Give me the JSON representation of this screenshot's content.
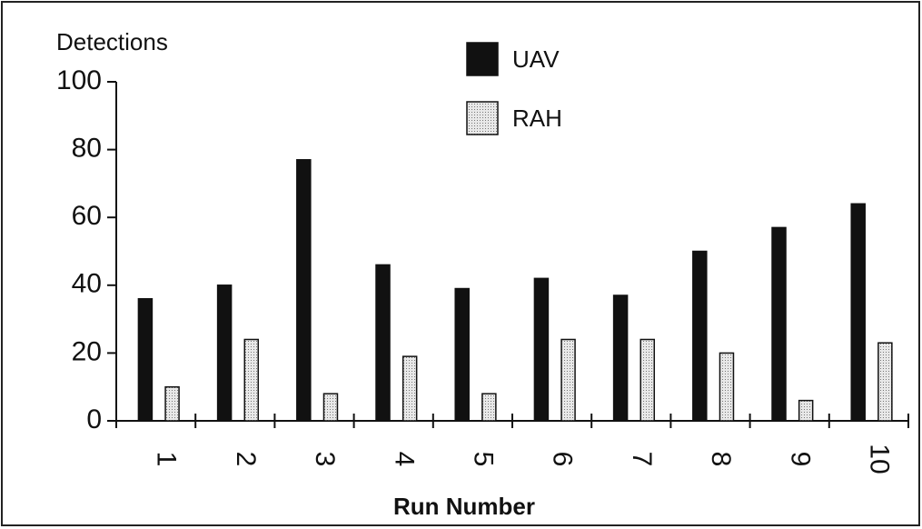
{
  "chart_data": {
    "type": "bar",
    "y_label": "Detections",
    "x_label": "Run Number",
    "categories": [
      "1",
      "2",
      "3",
      "4",
      "5",
      "6",
      "7",
      "8",
      "9",
      "10"
    ],
    "series": [
      {
        "name": "UAV",
        "color": "#111111",
        "values": [
          36,
          40,
          77,
          46,
          39,
          42,
          37,
          50,
          57,
          64
        ]
      },
      {
        "name": "RAH",
        "color": "#cfcfcf",
        "values": [
          10,
          24,
          8,
          19,
          8,
          24,
          24,
          20,
          6,
          23
        ]
      }
    ],
    "ylim": [
      0,
      100
    ],
    "yticks": [
      0,
      20,
      40,
      60,
      80,
      100
    ],
    "grid": false
  }
}
